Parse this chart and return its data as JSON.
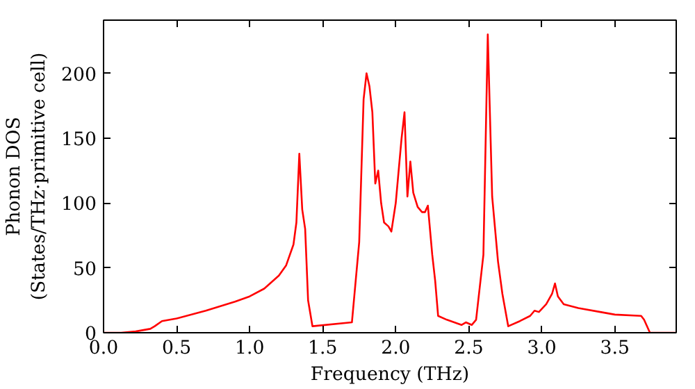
{
  "chart_data": {
    "type": "line",
    "xlabel": "Frequency (THz)",
    "ylabel": "Phonon DOS\n(States/THz·primitive cell)",
    "xlim": [
      0,
      3.92
    ],
    "ylim": [
      0,
      241
    ],
    "xticks": [
      {
        "value": 0,
        "label": "0.0"
      },
      0.5,
      {
        "value": 1,
        "label": "1.0"
      },
      1.5,
      {
        "value": 2,
        "label": "2.0"
      },
      2.5,
      {
        "value": 3,
        "label": "3.0"
      },
      3.5
    ],
    "yticks": [
      0,
      50,
      100,
      150,
      200
    ],
    "grid": false,
    "series": [
      {
        "color": "#ff0000",
        "x": [
          0,
          0.12,
          0.22,
          0.32,
          0.35,
          0.4,
          0.5,
          0.7,
          0.9,
          1.0,
          1.1,
          1.2,
          1.25,
          1.3,
          1.32,
          1.34,
          1.36,
          1.38,
          1.4,
          1.43,
          1.7,
          1.75,
          1.78,
          1.8,
          1.82,
          1.84,
          1.86,
          1.88,
          1.9,
          1.92,
          1.95,
          1.97,
          2.0,
          2.04,
          2.06,
          2.08,
          2.1,
          2.12,
          2.15,
          2.18,
          2.2,
          2.22,
          2.25,
          2.27,
          2.29,
          2.35,
          2.45,
          2.48,
          2.52,
          2.55,
          2.6,
          2.63,
          2.66,
          2.7,
          2.73,
          2.77,
          2.85,
          2.92,
          2.95,
          2.98,
          3.03,
          3.07,
          3.09,
          3.11,
          3.15,
          3.25,
          3.4,
          3.5,
          3.68,
          3.7,
          3.74,
          3.92
        ],
        "values": [
          0,
          0,
          1,
          3,
          5,
          9,
          11,
          17,
          24,
          28,
          34,
          44,
          52,
          68,
          85,
          138,
          95,
          80,
          25,
          5,
          8,
          70,
          180,
          200,
          190,
          170,
          115,
          125,
          100,
          85,
          82,
          78,
          100,
          150,
          170,
          105,
          132,
          108,
          97,
          93,
          93,
          98,
          60,
          40,
          13,
          10,
          6,
          8,
          6,
          10,
          60,
          230,
          105,
          55,
          30,
          5,
          9,
          13,
          17,
          16,
          22,
          30,
          38,
          28,
          22,
          19,
          16,
          14,
          13,
          10,
          0,
          0
        ]
      }
    ]
  }
}
